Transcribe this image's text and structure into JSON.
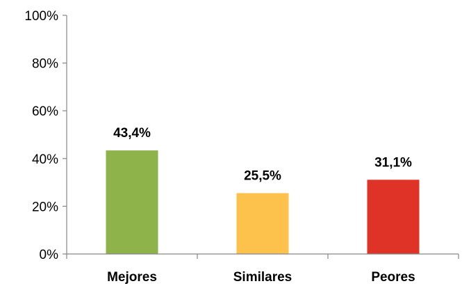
{
  "chart_data": {
    "type": "bar",
    "title": "",
    "xlabel": "",
    "ylabel": "",
    "categories": [
      "Mejores",
      "Similares",
      "Peores"
    ],
    "values": [
      43.4,
      25.5,
      31.1
    ],
    "data_labels": [
      "43,4%",
      "25,5%",
      "31,1%"
    ],
    "colors": [
      "#8db34a",
      "#fdc24b",
      "#e03327"
    ],
    "ylim": [
      0,
      100
    ],
    "yticks": [
      0,
      20,
      40,
      60,
      80,
      100
    ],
    "ytick_labels": [
      "0%",
      "20%",
      "40%",
      "60%",
      "80%",
      "100%"
    ],
    "grid": false,
    "legend": "none"
  }
}
